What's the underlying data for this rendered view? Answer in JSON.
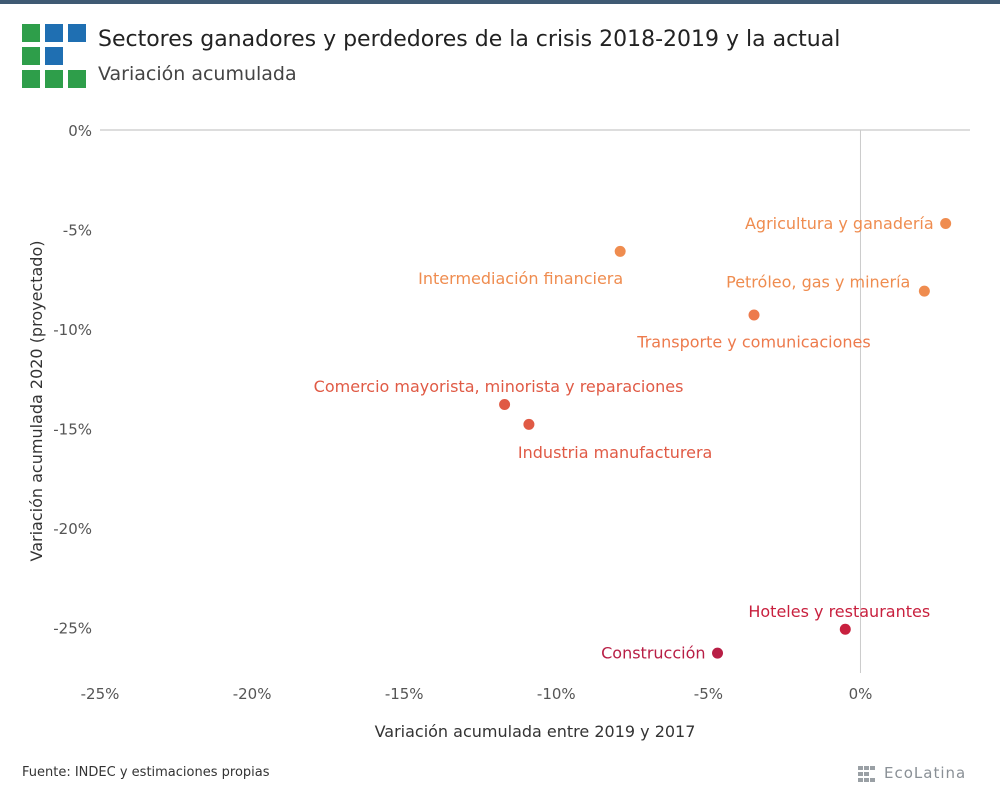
{
  "header": {
    "title": "Sectores ganadores y perdedores de la crisis 2018-2019 y la actual",
    "subtitle": "Variación acumulada"
  },
  "footer": {
    "source": "Fuente: INDEC y estimaciones propias",
    "brand": "EcoLatina"
  },
  "logo": {
    "colors": [
      "#2e9e4a",
      "#1f6fb2"
    ]
  },
  "chart_data": {
    "type": "scatter",
    "xlabel": "Variación acumulada entre 2019 y 2017",
    "ylabel": "Variación acumulada 2020 (proyectado)",
    "xlim": [
      -25,
      3.6
    ],
    "ylim": [
      -27.3,
      0
    ],
    "xticks": [
      -25,
      -20,
      -15,
      -10,
      -5,
      0
    ],
    "yticks": [
      0,
      -5,
      -10,
      -15,
      -20,
      -25
    ],
    "tick_suffix": "%",
    "grid": false,
    "points": [
      {
        "label": "Agricultura y ganadería",
        "x": 2.8,
        "y": -4.7,
        "color": "#ef8c4f",
        "label_pos": "left"
      },
      {
        "label": "Intermediación financiera",
        "x": -7.9,
        "y": -6.1,
        "color": "#ef8c4f",
        "label_pos": "below-left"
      },
      {
        "label": "Petróleo, gas y minería",
        "x": 2.1,
        "y": -8.1,
        "color": "#ef8c4f",
        "label_pos": "above-left"
      },
      {
        "label": "Transporte y comunicaciones",
        "x": -3.5,
        "y": -9.3,
        "color": "#ed7a4c",
        "label_pos": "below"
      },
      {
        "label": "Comercio mayorista, minorista y reparaciones",
        "x": -11.7,
        "y": -13.8,
        "color": "#e05a45",
        "label_pos": "above"
      },
      {
        "label": "Industria manufacturera",
        "x": -10.9,
        "y": -14.8,
        "color": "#e05a45",
        "label_pos": "below-right"
      },
      {
        "label": "Hoteles y restaurantes",
        "x": -0.5,
        "y": -25.1,
        "color": "#c8203e",
        "label_pos": "above"
      },
      {
        "label": "Construcción",
        "x": -4.7,
        "y": -26.3,
        "color": "#b81e45",
        "label_pos": "left"
      }
    ]
  }
}
